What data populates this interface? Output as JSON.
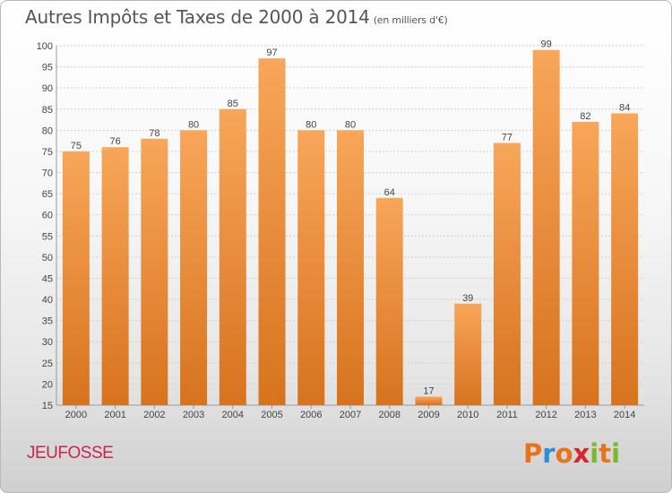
{
  "header": {
    "title": "Autres Impôts et Taxes de 2000 à 2014",
    "subtitle": "(en milliers d'€)"
  },
  "footer": {
    "commune": "JEUFOSSE",
    "logo_letters": [
      "P",
      "r",
      "o",
      "x",
      "i",
      "t",
      "i"
    ],
    "logo_colors": [
      "#e8731d",
      "#2e8fd6",
      "#e8731d",
      "#d9262b",
      "#7ab929",
      "#e8731d",
      "#7ab929"
    ]
  },
  "colors": {
    "bar_top": "#f8a65a",
    "bar_bottom": "#d7731e",
    "grid": "#cfcfcf"
  },
  "chart_data": {
    "type": "bar",
    "title": "Autres Impôts et Taxes de 2000 à 2014",
    "subtitle": "(en milliers d'€)",
    "categories": [
      "2000",
      "2001",
      "2002",
      "2003",
      "2004",
      "2005",
      "2006",
      "2007",
      "2008",
      "2009",
      "2010",
      "2011",
      "2012",
      "2013",
      "2014"
    ],
    "values": [
      75,
      76,
      78,
      80,
      85,
      97,
      80,
      80,
      64,
      17,
      39,
      77,
      99,
      82,
      84
    ],
    "ylim": [
      15,
      100
    ],
    "yticks": [
      15,
      20,
      25,
      30,
      35,
      40,
      45,
      50,
      55,
      60,
      65,
      70,
      75,
      80,
      85,
      90,
      95,
      100
    ],
    "grid": true,
    "legend": "none"
  }
}
